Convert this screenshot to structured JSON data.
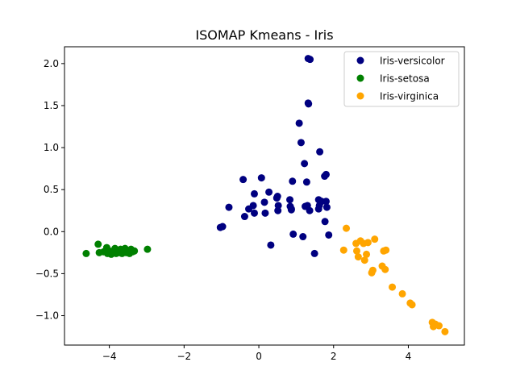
{
  "chart_data": {
    "type": "scatter",
    "title": "ISOMAP Kmeans - Iris",
    "xlabel": "",
    "ylabel": "",
    "xlim": [
      -5.2,
      5.5
    ],
    "ylim": [
      -1.35,
      2.2
    ],
    "xticks": [
      -4,
      -2,
      0,
      2,
      4
    ],
    "yticks": [
      -1.0,
      -0.5,
      0.0,
      0.5,
      1.0,
      1.5,
      2.0
    ],
    "xtick_labels": [
      "−4",
      "−2",
      "0",
      "2",
      "4"
    ],
    "ytick_labels": [
      "−1.0",
      "−0.5",
      "0.0",
      "0.5",
      "1.0",
      "1.5",
      "2.0"
    ],
    "grid": false,
    "legend_position": "top-right",
    "series": [
      {
        "name": "Iris-versicolor",
        "color": "#000080",
        "points": [
          [
            1.32,
            2.06
          ],
          [
            1.37,
            2.05
          ],
          [
            1.32,
            1.53
          ],
          [
            1.33,
            1.52
          ],
          [
            1.08,
            1.29
          ],
          [
            1.13,
            1.06
          ],
          [
            1.63,
            0.95
          ],
          [
            1.22,
            0.81
          ],
          [
            1.76,
            0.66
          ],
          [
            1.8,
            0.68
          ],
          [
            -0.42,
            0.62
          ],
          [
            0.07,
            0.64
          ],
          [
            0.9,
            0.6
          ],
          [
            1.28,
            0.59
          ],
          [
            0.27,
            0.47
          ],
          [
            -0.12,
            0.45
          ],
          [
            0.5,
            0.42
          ],
          [
            0.48,
            0.4
          ],
          [
            0.83,
            0.38
          ],
          [
            1.6,
            0.38
          ],
          [
            1.68,
            0.36
          ],
          [
            1.8,
            0.36
          ],
          [
            0.15,
            0.35
          ],
          [
            -0.8,
            0.29
          ],
          [
            -0.15,
            0.31
          ],
          [
            0.52,
            0.31
          ],
          [
            0.84,
            0.3
          ],
          [
            0.87,
            0.27
          ],
          [
            1.24,
            0.3
          ],
          [
            1.3,
            0.31
          ],
          [
            1.62,
            0.31
          ],
          [
            1.82,
            0.29
          ],
          [
            -0.27,
            0.27
          ],
          [
            -0.12,
            0.22
          ],
          [
            0.17,
            0.22
          ],
          [
            0.51,
            0.25
          ],
          [
            0.87,
            0.26
          ],
          [
            1.36,
            0.25
          ],
          [
            1.6,
            0.27
          ],
          [
            -0.38,
            0.18
          ],
          [
            1.77,
            0.12
          ],
          [
            -1.03,
            0.05
          ],
          [
            -0.97,
            0.06
          ],
          [
            0.92,
            -0.03
          ],
          [
            1.18,
            -0.06
          ],
          [
            1.87,
            -0.04
          ],
          [
            0.32,
            -0.16
          ],
          [
            1.49,
            -0.26
          ]
        ]
      },
      {
        "name": "Iris-setosa",
        "color": "#008000",
        "points": [
          [
            -4.62,
            -0.26
          ],
          [
            -4.3,
            -0.15
          ],
          [
            -4.27,
            -0.25
          ],
          [
            -4.15,
            -0.24
          ],
          [
            -4.07,
            -0.19
          ],
          [
            -4.05,
            -0.26
          ],
          [
            -4.0,
            -0.23
          ],
          [
            -3.95,
            -0.27
          ],
          [
            -3.9,
            -0.24
          ],
          [
            -3.85,
            -0.2
          ],
          [
            -3.82,
            -0.26
          ],
          [
            -3.78,
            -0.23
          ],
          [
            -3.75,
            -0.25
          ],
          [
            -3.7,
            -0.21
          ],
          [
            -3.66,
            -0.26
          ],
          [
            -3.62,
            -0.23
          ],
          [
            -3.58,
            -0.2
          ],
          [
            -3.55,
            -0.25
          ],
          [
            -3.5,
            -0.23
          ],
          [
            -3.46,
            -0.26
          ],
          [
            -3.42,
            -0.21
          ],
          [
            -3.38,
            -0.24
          ],
          [
            -3.33,
            -0.23
          ],
          [
            -2.98,
            -0.21
          ]
        ]
      },
      {
        "name": "Iris-virginica",
        "color": "#FFA500",
        "points": [
          [
            2.34,
            0.04
          ],
          [
            2.27,
            -0.22
          ],
          [
            2.6,
            -0.14
          ],
          [
            2.62,
            -0.23
          ],
          [
            2.66,
            -0.3
          ],
          [
            2.72,
            -0.11
          ],
          [
            2.8,
            -0.14
          ],
          [
            2.83,
            -0.34
          ],
          [
            2.88,
            -0.27
          ],
          [
            2.92,
            -0.13
          ],
          [
            3.02,
            -0.49
          ],
          [
            3.05,
            -0.46
          ],
          [
            3.1,
            -0.09
          ],
          [
            3.3,
            -0.41
          ],
          [
            3.34,
            -0.23
          ],
          [
            3.38,
            -0.45
          ],
          [
            3.4,
            -0.22
          ],
          [
            3.57,
            -0.66
          ],
          [
            3.84,
            -0.74
          ],
          [
            4.05,
            -0.85
          ],
          [
            4.1,
            -0.87
          ],
          [
            4.64,
            -1.08
          ],
          [
            4.67,
            -1.13
          ],
          [
            4.72,
            -1.1
          ],
          [
            4.82,
            -1.12
          ],
          [
            4.98,
            -1.19
          ]
        ]
      }
    ]
  }
}
